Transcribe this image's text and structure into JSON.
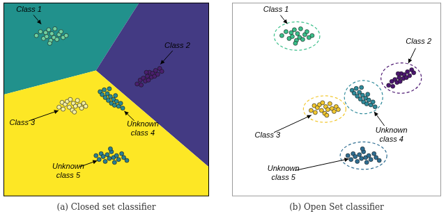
{
  "chart_data": [
    {
      "type": "scatter",
      "title": "(a) Closed set classifier",
      "xlim": [
        0,
        100
      ],
      "ylim": [
        0,
        100
      ],
      "tick_labels": false,
      "grid": false,
      "regions": [
        {
          "color": "#21918c",
          "x": [
            0,
            66,
            45,
            0
          ],
          "y": [
            100,
            100,
            65,
            52.5
          ]
        },
        {
          "color": "#433a83",
          "x": [
            66,
            100,
            100,
            45
          ],
          "y": [
            100,
            100,
            15,
            65
          ]
        },
        {
          "color": "#fde725",
          "x": [
            0,
            45,
            100,
            100,
            0
          ],
          "y": [
            52.5,
            65,
            15,
            0,
            0
          ]
        }
      ],
      "series": [
        {
          "name": "Class 1",
          "color": "#6fd0a0",
          "x": [
            16,
            18,
            19.5,
            20.5,
            21,
            22,
            23,
            23.5,
            24.5,
            25,
            26,
            27,
            28,
            29,
            30.5,
            22.5
          ],
          "y": [
            83,
            85,
            81.5,
            84.5,
            82.5,
            86,
            80.5,
            84,
            82,
            86.5,
            81,
            83.5,
            85,
            82,
            83,
            79
          ]
        },
        {
          "name": "Class 2",
          "color": "#4a1f6e",
          "x": [
            65,
            66.5,
            67,
            68,
            69,
            70,
            70.5,
            71,
            72,
            72.5,
            73.5,
            74,
            75,
            76,
            77,
            69.5
          ],
          "y": [
            58,
            60,
            57.5,
            61,
            59.5,
            62,
            60,
            64,
            61.5,
            63.5,
            62,
            65,
            63,
            66,
            64.5,
            64
          ]
        },
        {
          "name": "Class 3",
          "color": "#f5f0a0",
          "x": [
            27,
            28.5,
            29,
            30,
            31,
            32,
            32.5,
            33.5,
            34,
            35,
            36,
            37,
            38,
            39,
            40,
            34.5
          ],
          "y": [
            46,
            48.5,
            45,
            47.5,
            49,
            46,
            50,
            44.5,
            48,
            46.5,
            49.5,
            47,
            45.5,
            48,
            46.5,
            43.5
          ]
        },
        {
          "name": "Unknown class 4",
          "color": "#2a8a96",
          "x": [
            47,
            48,
            49,
            49.5,
            50.5,
            51,
            52,
            52.5,
            53.5,
            54,
            55,
            56,
            57,
            58,
            51.5,
            54.5
          ],
          "y": [
            54,
            52.5,
            55,
            51,
            53,
            49.5,
            51.5,
            48,
            50,
            47,
            49,
            46.5,
            48,
            45.5,
            55.5,
            52
          ]
        },
        {
          "name": "Unknown class 5",
          "color": "#2a7f92",
          "x": [
            45,
            46.5,
            47.5,
            48.5,
            49.5,
            50.5,
            51.5,
            52.5,
            53.5,
            54,
            55,
            56,
            57.5,
            58.5,
            60,
            52
          ],
          "y": [
            21,
            19,
            22,
            20.5,
            18,
            21.5,
            19.5,
            23,
            20,
            17.5,
            21,
            19,
            22,
            20,
            18.5,
            24.5
          ]
        }
      ]
    },
    {
      "type": "scatter",
      "title": "(b) Open Set classifier",
      "xlim": [
        0,
        100
      ],
      "ylim": [
        0,
        100
      ],
      "tick_labels": false,
      "grid": false,
      "series": [
        {
          "name": "Class 1",
          "color": "#3bbf8a",
          "x": [
            23.8,
            25.8,
            27.3,
            28.3,
            28.8,
            29.8,
            30.8,
            31.3,
            32.3,
            32.8,
            33.8,
            34.8,
            35.8,
            36.8,
            38.3,
            30.3
          ],
          "y": [
            83,
            85,
            81.5,
            84.5,
            82.5,
            86,
            80.5,
            84,
            82,
            86.5,
            81,
            83.5,
            85,
            82,
            83,
            79
          ]
        },
        {
          "name": "Class 2",
          "color": "#4b1670",
          "x": [
            74.9,
            76.4,
            76.9,
            77.9,
            78.9,
            79.9,
            80.4,
            80.9,
            81.9,
            82.4,
            83.4,
            83.9,
            84.9,
            85.9,
            86.9,
            79.4
          ],
          "y": [
            57.3,
            59.3,
            56.8,
            60.3,
            58.8,
            61.3,
            59.3,
            63.3,
            60.8,
            62.8,
            61.3,
            64.3,
            62.3,
            65.3,
            63.8,
            63.3
          ]
        },
        {
          "name": "Class 3",
          "color": "#f2c830",
          "x": [
            37.8,
            39.3,
            39.8,
            40.8,
            41.8,
            42.8,
            43.3,
            44.3,
            44.8,
            45.8,
            46.8,
            47.8,
            48.8,
            49.8,
            50.8,
            45.3
          ],
          "y": [
            44.3,
            46.8,
            43.3,
            45.8,
            47.3,
            44.3,
            48.3,
            42.8,
            46.3,
            44.8,
            47.8,
            45.3,
            43.8,
            46.3,
            44.8,
            41.8
          ]
        },
        {
          "name": "Unknown class 4",
          "color": "#2e8a9a",
          "x": [
            57.4,
            58.4,
            59.4,
            59.9,
            60.9,
            61.4,
            62.4,
            62.9,
            63.9,
            64.4,
            65.4,
            66.4,
            67.4,
            68.4,
            61.9,
            64.9
          ],
          "y": [
            54.7,
            53.2,
            55.7,
            51.7,
            53.7,
            50.2,
            52.2,
            48.7,
            50.7,
            47.7,
            49.7,
            47.2,
            48.7,
            46.2,
            56.2,
            52.7
          ]
        },
        {
          "name": "Unknown class 5",
          "color": "#2f6e92",
          "x": [
            55.4,
            56.9,
            57.9,
            58.9,
            59.9,
            60.9,
            61.9,
            62.9,
            63.9,
            64.4,
            65.4,
            66.4,
            67.9,
            68.9,
            70.4,
            62.4
          ],
          "y": [
            21,
            19,
            22,
            20.5,
            18,
            21.5,
            19.5,
            23,
            20,
            17.5,
            21,
            19,
            22,
            20,
            18.5,
            24.5
          ]
        }
      ]
    }
  ]
}
